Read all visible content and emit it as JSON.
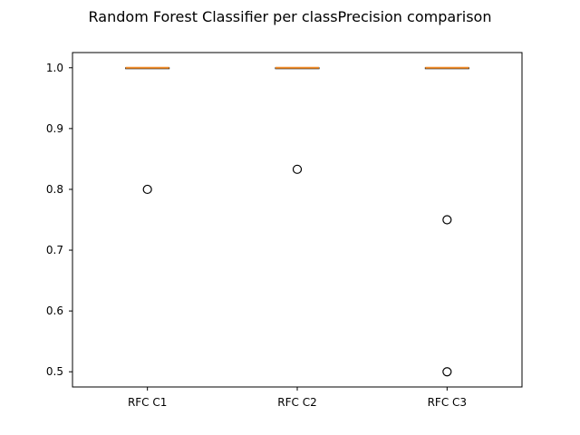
{
  "chart_data": {
    "type": "box",
    "title": "Random Forest Classifier per classPrecision comparison",
    "xlabel": "",
    "ylabel": "",
    "categories": [
      "RFC C1",
      "RFC C2",
      "RFC C3"
    ],
    "ylim": [
      0.475,
      1.025
    ],
    "yticks": [
      0.5,
      0.6,
      0.7,
      0.8,
      0.9,
      1.0
    ],
    "ytick_labels": [
      "0.5",
      "0.6",
      "0.7",
      "0.8",
      "0.9",
      "1.0"
    ],
    "grid": false,
    "boxes": [
      {
        "category": "RFC C1",
        "min": 1.0,
        "q1": 1.0,
        "median": 1.0,
        "q3": 1.0,
        "max": 1.0,
        "outliers": [
          0.8
        ]
      },
      {
        "category": "RFC C2",
        "min": 1.0,
        "q1": 1.0,
        "median": 1.0,
        "q3": 1.0,
        "max": 1.0,
        "outliers": [
          0.833
        ]
      },
      {
        "category": "RFC C3",
        "min": 1.0,
        "q1": 1.0,
        "median": 1.0,
        "q3": 1.0,
        "max": 1.0,
        "outliers": [
          0.75,
          0.5
        ]
      }
    ],
    "colors": {
      "box": "#000000",
      "median": "#f28e2b",
      "outlier_edge": "#000000",
      "background": "#ffffff"
    }
  }
}
